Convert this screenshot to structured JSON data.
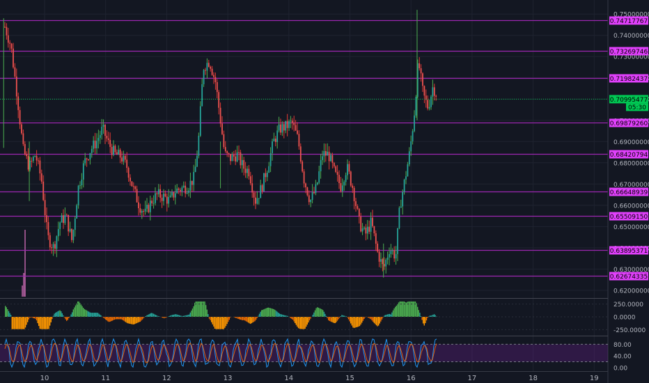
{
  "chart_data": {
    "type": "candlestick",
    "x_ticks": [
      "10",
      "11",
      "12",
      "13",
      "14",
      "15",
      "16",
      "17",
      "18",
      "19"
    ],
    "price_axis": {
      "ticks": [
        "0.75000000",
        "0.74000000",
        "0.73000000",
        "0.72000000",
        "0.71000000",
        "0.70000000",
        "0.69000000",
        "0.68000000",
        "0.67000000",
        "0.66000000",
        "0.65000000",
        "0.64000000",
        "0.63000000",
        "0.62000000"
      ],
      "ylim": [
        0.617,
        0.754
      ]
    },
    "levels": [
      {
        "label": "0.74717767",
        "value": 0.74717767
      },
      {
        "label": "0.73269746",
        "value": 0.73269746
      },
      {
        "label": "0.71982437",
        "value": 0.71982437
      },
      {
        "label": "0.69879260",
        "value": 0.6987926
      },
      {
        "label": "0.68420794",
        "value": 0.68420794
      },
      {
        "label": "0.66648939",
        "value": 0.66648939
      },
      {
        "label": "0.65509150",
        "value": 0.6550915
      },
      {
        "label": "0.63895371",
        "value": 0.63895371
      },
      {
        "label": "0.62674335",
        "value": 0.62674335
      }
    ],
    "current": {
      "price": "0.70995477",
      "value": 0.70995477,
      "countdown": "05:30"
    },
    "close_path": [
      [
        9.35,
        0.744
      ],
      [
        9.45,
        0.735
      ],
      [
        9.55,
        0.712
      ],
      [
        9.65,
        0.686
      ],
      [
        9.75,
        0.678
      ],
      [
        9.85,
        0.684
      ],
      [
        9.95,
        0.672
      ],
      [
        10.05,
        0.645
      ],
      [
        10.15,
        0.64
      ],
      [
        10.25,
        0.652
      ],
      [
        10.35,
        0.655
      ],
      [
        10.45,
        0.643
      ],
      [
        10.55,
        0.668
      ],
      [
        10.65,
        0.68
      ],
      [
        10.75,
        0.686
      ],
      [
        10.85,
        0.69
      ],
      [
        10.95,
        0.696
      ],
      [
        11.05,
        0.689
      ],
      [
        11.15,
        0.684
      ],
      [
        11.25,
        0.683
      ],
      [
        11.35,
        0.678
      ],
      [
        11.45,
        0.668
      ],
      [
        11.55,
        0.66
      ],
      [
        11.65,
        0.656
      ],
      [
        11.75,
        0.662
      ],
      [
        11.85,
        0.665
      ],
      [
        11.95,
        0.664
      ],
      [
        12.05,
        0.662
      ],
      [
        12.15,
        0.667
      ],
      [
        12.25,
        0.668
      ],
      [
        12.35,
        0.669
      ],
      [
        12.45,
        0.673
      ],
      [
        12.52,
        0.69
      ],
      [
        12.6,
        0.725
      ],
      [
        12.7,
        0.728
      ],
      [
        12.8,
        0.718
      ],
      [
        12.88,
        0.7
      ],
      [
        12.95,
        0.684
      ],
      [
        13.05,
        0.682
      ],
      [
        13.15,
        0.684
      ],
      [
        13.25,
        0.678
      ],
      [
        13.35,
        0.676
      ],
      [
        13.45,
        0.662
      ],
      [
        13.55,
        0.668
      ],
      [
        13.65,
        0.678
      ],
      [
        13.75,
        0.69
      ],
      [
        13.85,
        0.696
      ],
      [
        13.95,
        0.697
      ],
      [
        14.05,
        0.699
      ],
      [
        14.15,
        0.691
      ],
      [
        14.25,
        0.672
      ],
      [
        14.35,
        0.662
      ],
      [
        14.45,
        0.668
      ],
      [
        14.55,
        0.684
      ],
      [
        14.65,
        0.684
      ],
      [
        14.75,
        0.675
      ],
      [
        14.85,
        0.669
      ],
      [
        14.95,
        0.678
      ],
      [
        15.05,
        0.668
      ],
      [
        15.15,
        0.652
      ],
      [
        15.25,
        0.646
      ],
      [
        15.35,
        0.652
      ],
      [
        15.45,
        0.638
      ],
      [
        15.55,
        0.63
      ],
      [
        15.65,
        0.64
      ],
      [
        15.75,
        0.636
      ],
      [
        15.82,
        0.66
      ],
      [
        15.9,
        0.672
      ],
      [
        15.98,
        0.685
      ],
      [
        16.05,
        0.702
      ],
      [
        16.12,
        0.728
      ],
      [
        16.2,
        0.712
      ],
      [
        16.28,
        0.706
      ],
      [
        16.36,
        0.716
      ],
      [
        16.42,
        0.712
      ]
    ],
    "oscillator": {
      "ticks": [
        "250.0000",
        "0.0000",
        "-250.0000"
      ],
      "ylim": [
        -340,
        340
      ]
    },
    "stochastic": {
      "ticks": [
        "80.00",
        "40.00",
        "0.00"
      ],
      "ylim": [
        -5,
        100
      ],
      "band": [
        20,
        80
      ]
    }
  }
}
